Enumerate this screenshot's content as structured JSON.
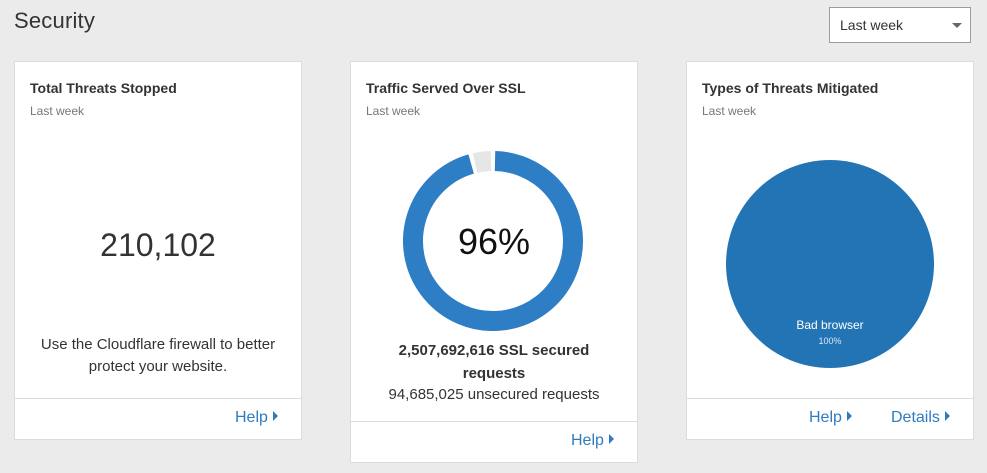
{
  "page": {
    "title": "Security",
    "range_select": {
      "value": "Last week"
    }
  },
  "cards": {
    "threats": {
      "title": "Total Threats Stopped",
      "subtitle": "Last week",
      "value": "210,102",
      "note": "Use the Cloudflare firewall to better protect your website.",
      "help_label": "Help"
    },
    "ssl": {
      "title": "Traffic Served Over SSL",
      "subtitle": "Last week",
      "percent_label": "96%",
      "secured": "2,507,692,616 SSL secured requests",
      "unsecured": "94,685,025 unsecured requests",
      "help_label": "Help"
    },
    "types": {
      "title": "Types of Threats Mitigated",
      "subtitle": "Last week",
      "help_label": "Help",
      "details_label": "Details"
    }
  },
  "chart_data": [
    {
      "type": "pie",
      "variant": "donut",
      "slices": [
        {
          "label": "secured",
          "value": 96
        },
        {
          "label": "unsecured",
          "value": 4
        }
      ],
      "colors": [
        "#2e7ec5",
        "#e6e6e6"
      ],
      "center_label": "96%"
    },
    {
      "type": "pie",
      "slices": [
        {
          "label": "Bad browser",
          "value": 100,
          "value_label": "100%"
        }
      ],
      "colors": [
        "#2274b5"
      ]
    }
  ],
  "colors": {
    "background": "#ebebeb",
    "card": "#ffffff",
    "link": "#2f7bbf",
    "donut_secured": "#2e7ec5",
    "donut_unsecured": "#e6e6e6",
    "pie": "#2274b5"
  }
}
